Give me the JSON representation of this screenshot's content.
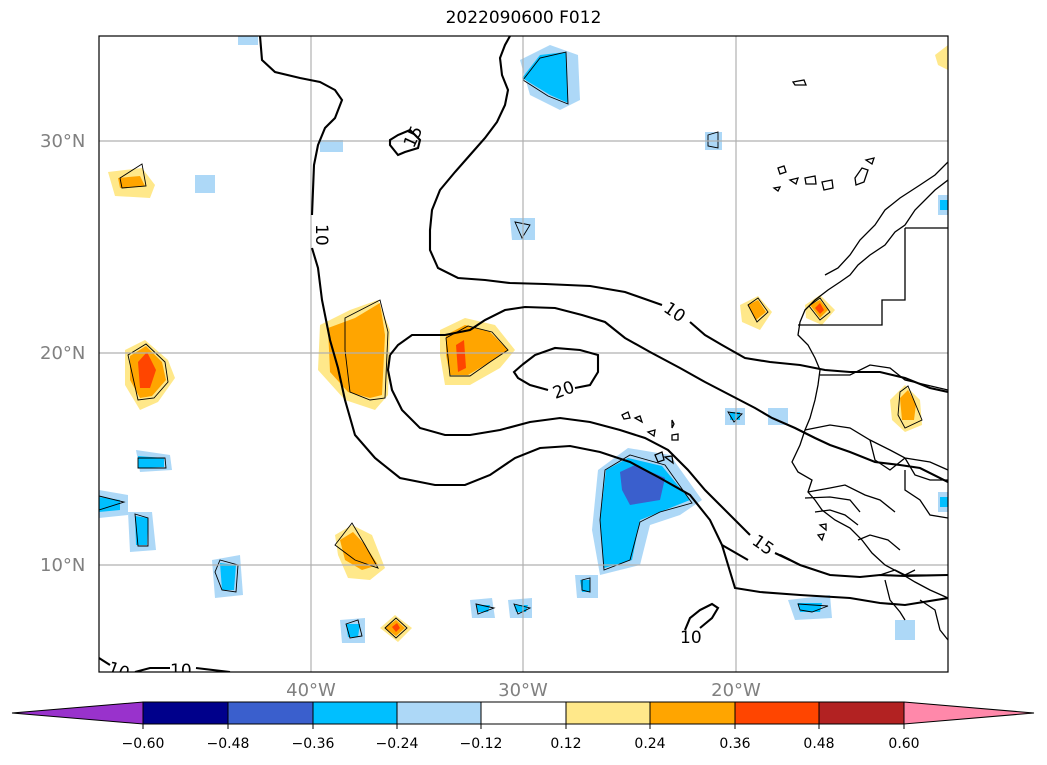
{
  "title": "2022090600 F012",
  "lat_labels": [
    "30°N",
    "20°N",
    "10°N"
  ],
  "lon_labels": [
    "40°W",
    "30°W",
    "20°W"
  ],
  "contour_labels": [
    "15",
    "10",
    "10",
    "20",
    "15",
    "10",
    "10",
    "10"
  ],
  "colorbar": {
    "ticks": [
      "−0.60",
      "−0.48",
      "−0.36",
      "−0.24",
      "−0.12",
      "0.12",
      "0.24",
      "0.36",
      "0.48",
      "0.60"
    ],
    "colors": [
      "#9932cc",
      "#00008b",
      "#3a5fcd",
      "#00bfff",
      "#add8f7",
      "#ffffff",
      "#ffe88a",
      "#ffa500",
      "#ff4500",
      "#b22222",
      "#ff88aa"
    ]
  },
  "map": {
    "lon_range": [
      "50°W",
      "10°W"
    ],
    "lat_range": [
      "5°N",
      "35°N"
    ],
    "gridlines": true,
    "coastlines": true
  }
}
